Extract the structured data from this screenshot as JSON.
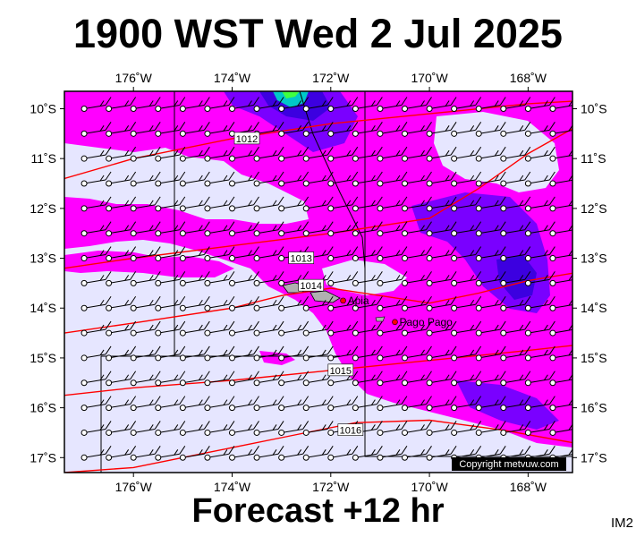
{
  "title": "1900 WST Wed 2 Jul 2025",
  "footer": "Forecast +12 hr",
  "image_id": "IM2",
  "copyright": "Copyright metvuw.com",
  "extent": {
    "lon_west": -177.4,
    "lon_east": -167.1,
    "lat_north": -9.65,
    "lat_south": -17.3
  },
  "lon_ticks": [
    {
      "value": -176,
      "label": "176˚W"
    },
    {
      "value": -174,
      "label": "174˚W"
    },
    {
      "value": -172,
      "label": "172˚W"
    },
    {
      "value": -170,
      "label": "170˚W"
    },
    {
      "value": -168,
      "label": "168˚W"
    }
  ],
  "lat_ticks": [
    {
      "value": -10,
      "label": "10˚S"
    },
    {
      "value": -11,
      "label": "11˚S"
    },
    {
      "value": -12,
      "label": "12˚S"
    },
    {
      "value": -13,
      "label": "13˚S"
    },
    {
      "value": -14,
      "label": "14˚S"
    },
    {
      "value": -15,
      "label": "15˚S"
    },
    {
      "value": -16,
      "label": "16˚S"
    },
    {
      "value": -17,
      "label": "17˚S"
    }
  ],
  "places": [
    {
      "name": "Apia",
      "lon": -171.75,
      "lat": -13.85
    },
    {
      "name": "Pago Pago",
      "lon": -170.7,
      "lat": -14.28
    }
  ],
  "isobars": [
    {
      "label": "1012",
      "label_at": [
        -173.7,
        -10.6
      ],
      "points": [
        [
          -177.4,
          -11.4
        ],
        [
          -176,
          -11.0
        ],
        [
          -174,
          -10.6
        ],
        [
          -172,
          -10.3
        ],
        [
          -170,
          -10.1
        ],
        [
          -168,
          -9.9
        ],
        [
          -167.1,
          -9.85
        ]
      ]
    },
    {
      "label": "1013",
      "label_at": [
        -172.6,
        -13.0
      ],
      "points": [
        [
          -177.4,
          -13.2
        ],
        [
          -176,
          -13.0
        ],
        [
          -174,
          -12.75
        ],
        [
          -172,
          -12.5
        ],
        [
          -170,
          -12.2
        ],
        [
          -169,
          -11.6
        ],
        [
          -168,
          -10.9
        ],
        [
          -167.1,
          -10.4
        ]
      ]
    },
    {
      "label": "1014",
      "label_at": [
        -172.4,
        -13.55
      ],
      "points": [
        [
          -177.4,
          -14.5
        ],
        [
          -176,
          -14.3
        ],
        [
          -174,
          -14.0
        ],
        [
          -173,
          -13.75
        ],
        [
          -172,
          -13.6
        ],
        [
          -171,
          -13.75
        ],
        [
          -170,
          -13.9
        ],
        [
          -169,
          -13.7
        ],
        [
          -168,
          -13.45
        ],
        [
          -167.1,
          -13.3
        ]
      ]
    },
    {
      "label": "1015",
      "label_at": [
        -171.8,
        -15.25
      ],
      "points": [
        [
          -177.4,
          -15.75
        ],
        [
          -176,
          -15.6
        ],
        [
          -174,
          -15.45
        ],
        [
          -172,
          -15.25
        ],
        [
          -170,
          -15.05
        ],
        [
          -168,
          -14.85
        ],
        [
          -167.1,
          -14.75
        ]
      ]
    },
    {
      "label": "1016",
      "label_at": [
        -171.6,
        -16.45
      ],
      "points": [
        [
          -177.4,
          -17.3
        ],
        [
          -176,
          -17.2
        ],
        [
          -174.5,
          -16.9
        ],
        [
          -173,
          -16.6
        ],
        [
          -171.5,
          -16.3
        ],
        [
          -170,
          -16.25
        ],
        [
          -168.5,
          -16.45
        ],
        [
          -167.1,
          -16.7
        ]
      ]
    }
  ],
  "legend_colors": {
    "background_light": "#e6e6ff",
    "rain_light": "#ff00ff",
    "rain_medium": "#7a00ff",
    "rain_heavy": "#3c00e0",
    "rain_extreme": "#00c8c8",
    "isobar": "#ff0000",
    "land": "#b0b0b0"
  }
}
